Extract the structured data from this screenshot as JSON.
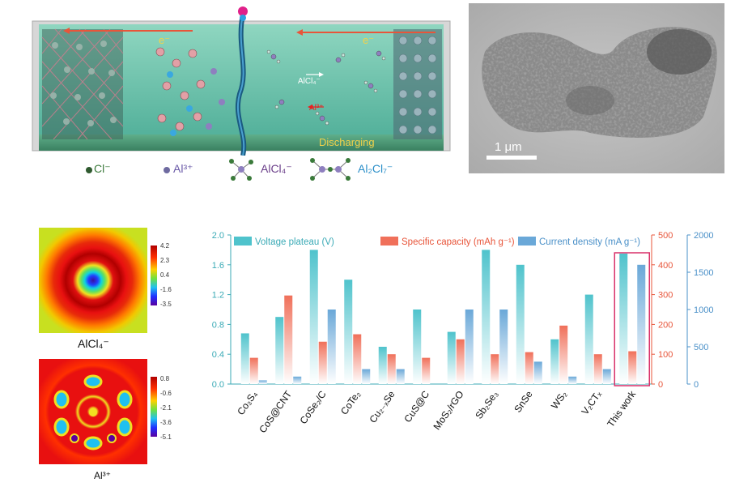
{
  "schematic": {
    "electron_left": "e⁻",
    "electron_right": "e⁻",
    "alcl4_label": "AlCl₄⁻",
    "al3_label": "Al³⁺",
    "discharging_label": "Discharging"
  },
  "legend": {
    "cl": "Cl⁻",
    "al3": "Al³⁺",
    "alcl4": "AlCl₄⁻",
    "al2cl7": "Al₂Cl₇⁻",
    "cl_color": "#3a7a3a",
    "al_color": "#8e7fbf",
    "alcl4_color": "#6b3f8a",
    "al2cl7_color": "#2b8fc9"
  },
  "tem": {
    "scale_label": "1 μm"
  },
  "maps": {
    "alcl4": {
      "caption": "AlCl₄⁻",
      "ticks": [
        "4.2",
        "2.3",
        "0.4",
        "-1.6",
        "-3.5"
      ]
    },
    "al3": {
      "caption": "Al³⁺",
      "ticks": [
        "0.8",
        "-0.6",
        "-2.1",
        "-3.6",
        "-5.1"
      ]
    }
  },
  "chart_data": {
    "type": "bar",
    "categories": [
      "Co₃S₄",
      "CoS@CNT",
      "CoSe₂/C",
      "CoTe₂",
      "Cu₂₋ₓSe",
      "CuS@C",
      "MoS₂/rGO",
      "Sb₂Se₃",
      "SnSe",
      "WS₂",
      "V₂CTₓ",
      "This work"
    ],
    "series": [
      {
        "name": "Voltage plateau (V)",
        "axis": "left",
        "color": "#4fc3cc",
        "values": [
          0.68,
          0.9,
          1.8,
          1.4,
          0.5,
          1.0,
          0.7,
          1.8,
          1.6,
          0.6,
          1.2,
          1.75
        ]
      },
      {
        "name": "Specific capacity (mAh g⁻¹)",
        "axis": "right1",
        "color": "#f0705a",
        "values": [
          88,
          297,
          142,
          167,
          100,
          88,
          150,
          100,
          107,
          196,
          100,
          110
        ]
      },
      {
        "name": "Current density (mA g⁻¹)",
        "axis": "right2",
        "color": "#6aa8d8",
        "values": [
          50,
          100,
          1000,
          200,
          200,
          0,
          1000,
          1000,
          300,
          100,
          200,
          1600
        ]
      }
    ],
    "axes": {
      "left": {
        "min": 0,
        "max": 2.0,
        "ticks": [
          "0.0",
          "0.4",
          "0.8",
          "1.2",
          "1.6",
          "2.0"
        ],
        "color": "#3aaab6"
      },
      "right1": {
        "min": 0,
        "max": 500,
        "ticks": [
          "0",
          "100",
          "200",
          "300",
          "400",
          "500"
        ],
        "color": "#e8553a"
      },
      "right2": {
        "min": 0,
        "max": 2000,
        "ticks": [
          "0",
          "500",
          "1000",
          "1500",
          "2000"
        ],
        "color": "#4a90c8"
      }
    },
    "highlight": "This work",
    "legend_placement": "top"
  }
}
